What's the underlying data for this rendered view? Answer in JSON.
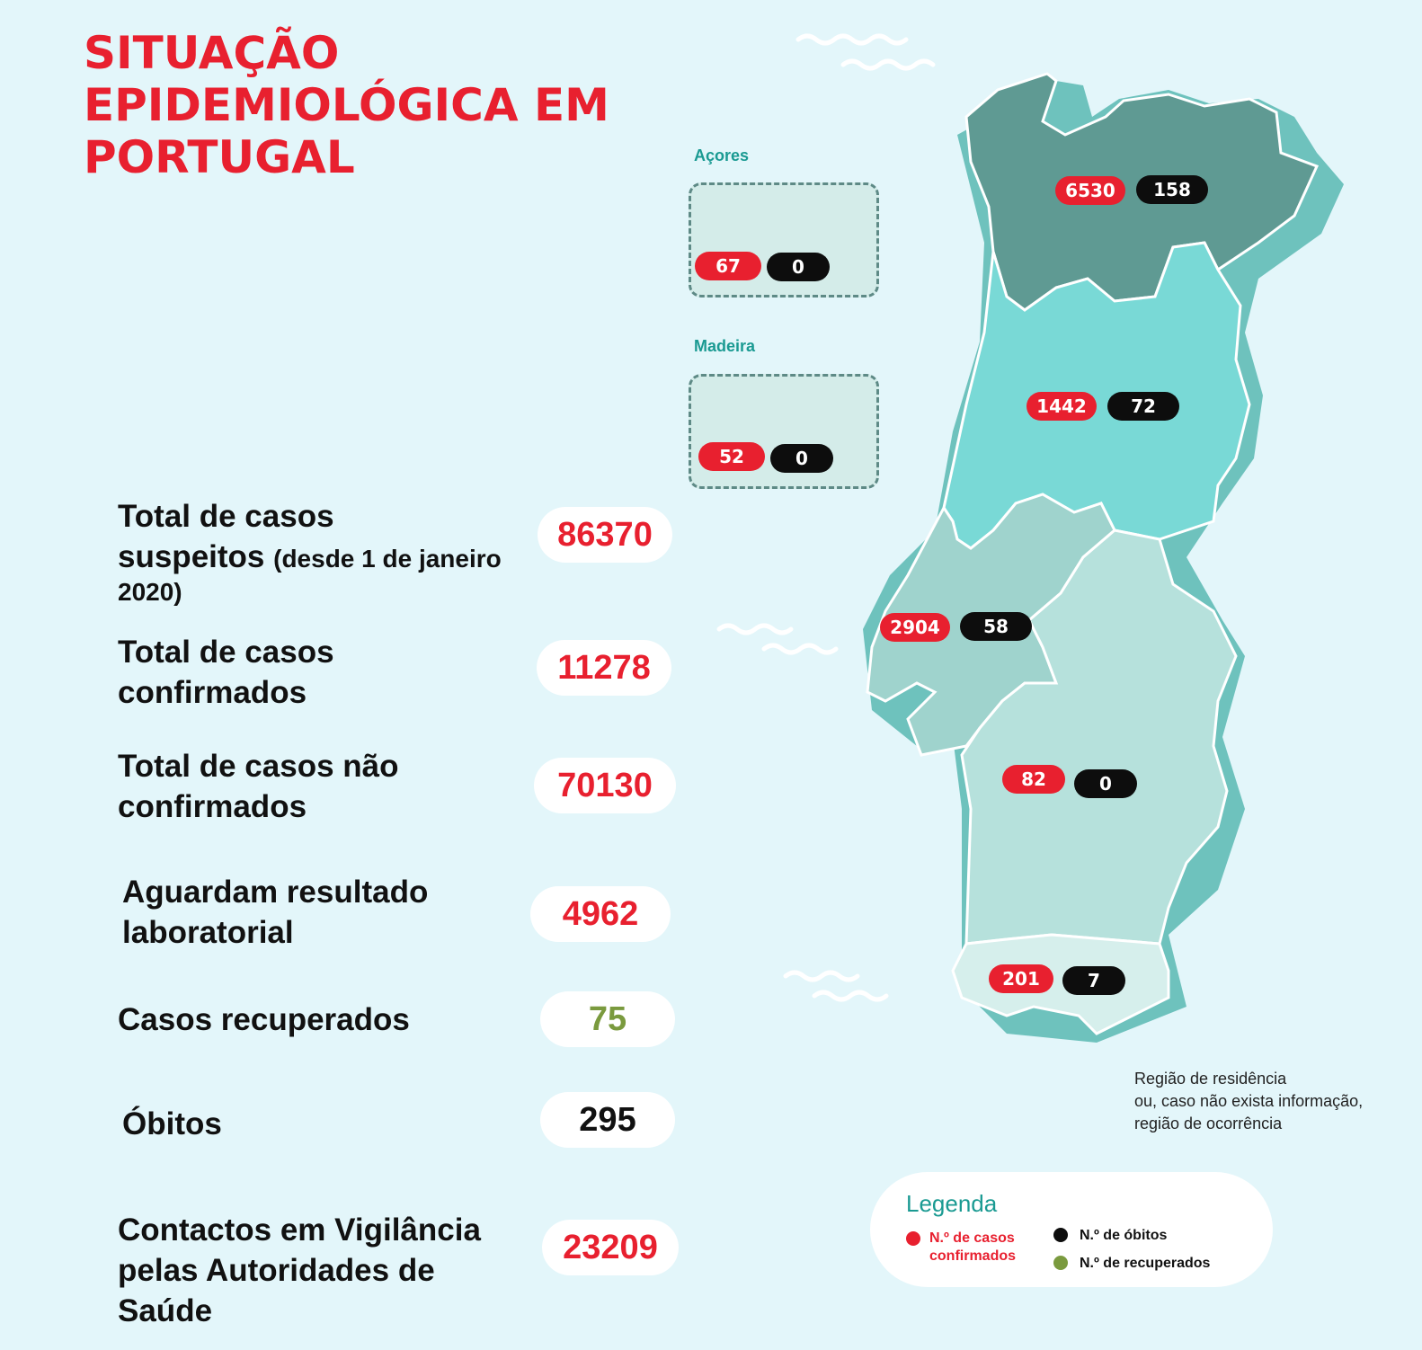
{
  "title": {
    "line1": "SITUAÇÃO",
    "line2": "EPIDEMIOLÓGICA EM",
    "line3": "PORTUGAL"
  },
  "stats": {
    "suspected": {
      "label_main": "Total de casos",
      "label_main2": "suspeitos",
      "label_sub": "(desde 1 de janeiro",
      "label_sub2": "2020)",
      "value": "86370"
    },
    "confirmed": {
      "label1": "Total de casos",
      "label2": "confirmados",
      "value": "11278"
    },
    "not_confirmed": {
      "label1": "Total de casos não",
      "label2": "confirmados",
      "value": "70130"
    },
    "awaiting": {
      "label1": "Aguardam resultado",
      "label2": "laboratorial",
      "value": "4962"
    },
    "recovered": {
      "label1": "Casos recuperados",
      "value": "75"
    },
    "deaths": {
      "label1": "Óbitos",
      "value": "295"
    },
    "contacts": {
      "label1": "Contactos em Vigilância",
      "label2": "pelas Autoridades de",
      "label3": "Saúde",
      "value": "23209"
    }
  },
  "islands": {
    "azores": {
      "label": "Açores",
      "confirmed": "67",
      "deaths": "0"
    },
    "madeira": {
      "label": "Madeira",
      "confirmed": "52",
      "deaths": "0"
    }
  },
  "regions": {
    "norte": {
      "confirmed": "6530",
      "deaths": "158"
    },
    "centro": {
      "confirmed": "1442",
      "deaths": "72"
    },
    "lisboa": {
      "confirmed": "2904",
      "deaths": "58"
    },
    "alentejo": {
      "confirmed": "82",
      "deaths": "0"
    },
    "algarve": {
      "confirmed": "201",
      "deaths": "7"
    }
  },
  "note": {
    "line1": "Região de residência",
    "line2": "ou, caso não exista informação,",
    "line3": "região de ocorrência"
  },
  "legend": {
    "title": "Legenda",
    "confirmed1": "N.º de casos",
    "confirmed2": "confirmados",
    "deaths": "N.º de óbitos",
    "recovered": "N.º de recuperados"
  },
  "colors": {
    "red": "#e8202f",
    "green": "#7a9a3e",
    "norte": "#5f9a93",
    "centro": "#79d9d6",
    "lisboa": "#9fd3cd",
    "alentejo": "#b6e1dc",
    "algarve": "#d6efec"
  }
}
